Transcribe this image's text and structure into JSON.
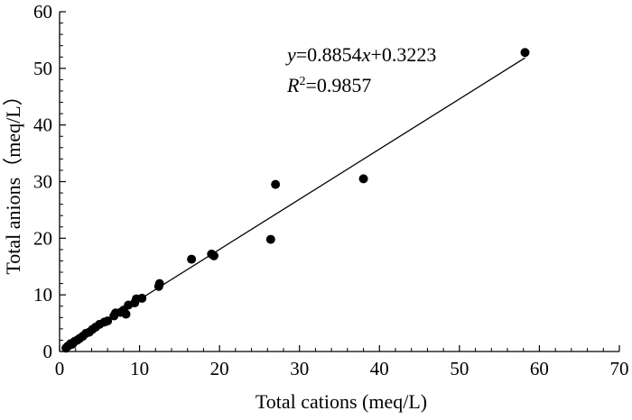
{
  "chart_data": {
    "type": "scatter",
    "xlabel": "Total cations (meq/L)",
    "ylabel": "Total anions（meq/L）",
    "xlim": [
      0,
      70
    ],
    "ylim": [
      0,
      60
    ],
    "xticks": [
      "0",
      "10",
      "20",
      "30",
      "40",
      "50",
      "60",
      "70"
    ],
    "yticks": [
      "0",
      "10",
      "20",
      "30",
      "40",
      "50",
      "60"
    ],
    "grid": false,
    "legend": "none",
    "fit_line": {
      "slope": 0.8854,
      "intercept": 0.3223,
      "x_range": [
        0.8,
        58.2
      ]
    },
    "annotations": {
      "equation": {
        "y": "y",
        "eq1": "=0.8854",
        "x": "x",
        "eq2": "+0.3223"
      },
      "r2": {
        "R": "R",
        "sup": "2",
        "rest": "=0.9857"
      }
    },
    "series": [
      {
        "points": [
          [
            0.8,
            0.6
          ],
          [
            1.0,
            0.9
          ],
          [
            1.2,
            1.1
          ],
          [
            1.4,
            1.4
          ],
          [
            1.6,
            1.3
          ],
          [
            1.9,
            1.8
          ],
          [
            2.2,
            2.0
          ],
          [
            2.5,
            2.3
          ],
          [
            2.9,
            2.7
          ],
          [
            3.3,
            3.2
          ],
          [
            3.7,
            3.4
          ],
          [
            4.1,
            3.9
          ],
          [
            4.5,
            4.3
          ],
          [
            5.0,
            4.8
          ],
          [
            5.6,
            5.2
          ],
          [
            6.0,
            5.4
          ],
          [
            6.8,
            6.3
          ],
          [
            7.0,
            6.8
          ],
          [
            7.6,
            6.9
          ],
          [
            8.0,
            7.3
          ],
          [
            8.3,
            6.6
          ],
          [
            8.6,
            8.2
          ],
          [
            9.4,
            8.6
          ],
          [
            9.6,
            9.3
          ],
          [
            10.3,
            9.4
          ],
          [
            12.4,
            11.5
          ],
          [
            12.5,
            12.0
          ],
          [
            16.5,
            16.3
          ],
          [
            19.0,
            17.2
          ],
          [
            19.3,
            16.9
          ],
          [
            26.4,
            19.8
          ],
          [
            27.0,
            29.5
          ],
          [
            38.0,
            30.5
          ],
          [
            58.2,
            52.8
          ]
        ]
      }
    ]
  }
}
